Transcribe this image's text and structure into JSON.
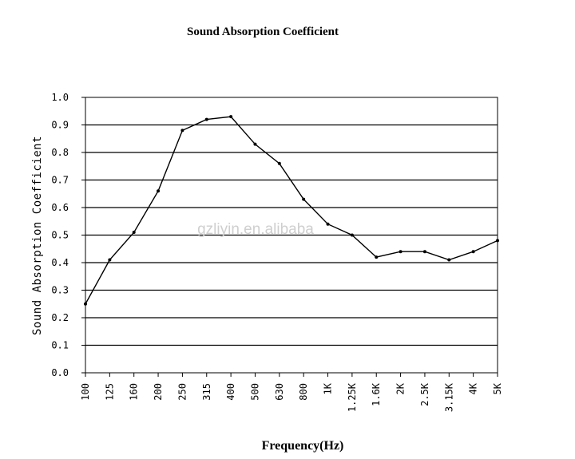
{
  "chart_data": {
    "type": "line",
    "title": "Sound Absorption Coefficient",
    "xlabel": "Frequency(Hz)",
    "ylabel": "Sound Absorption Coefficient",
    "categories": [
      "100",
      "125",
      "160",
      "200",
      "250",
      "315",
      "400",
      "500",
      "630",
      "800",
      "1K",
      "1.25K",
      "1.6K",
      "2K",
      "2.5K",
      "3.15K",
      "4K",
      "5K"
    ],
    "yticks": [
      "0.0",
      "0.1",
      "0.2",
      "0.3",
      "0.4",
      "0.5",
      "0.6",
      "0.7",
      "0.8",
      "0.9",
      "1.0"
    ],
    "ylim": [
      0,
      1.0
    ],
    "grid": true,
    "series": [
      {
        "values": [
          0.25,
          0.41,
          0.51,
          0.66,
          0.88,
          0.92,
          0.93,
          0.83,
          0.76,
          0.63,
          0.54,
          0.5,
          0.42,
          0.44,
          0.44,
          0.41,
          0.44,
          0.48
        ],
        "color": "#000000"
      }
    ],
    "watermark": "gzliyin.en.alibaba"
  }
}
